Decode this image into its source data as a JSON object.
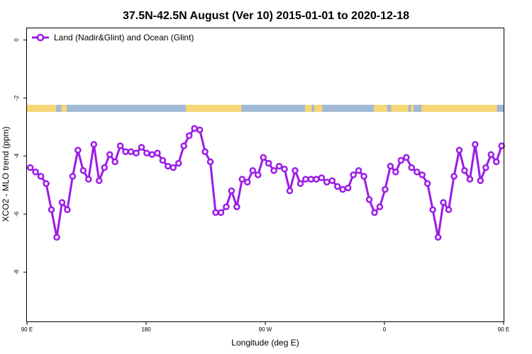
{
  "chart_data": {
    "type": "line",
    "title": "37.5N-42.5N August (Ver 10)   2015-01-01 to 2020-12-18",
    "xlabel": "Longitude (deg E)",
    "ylabel": "XCO2 - MLO trend (ppm)",
    "xlim": [
      90,
      450
    ],
    "ylim": [
      -9.7,
      0.4
    ],
    "xticks": [
      {
        "value": 90,
        "label": "90 E"
      },
      {
        "value": 180,
        "label": "180"
      },
      {
        "value": 270,
        "label": "90 W"
      },
      {
        "value": 360,
        "label": "0"
      },
      {
        "value": 450,
        "label": "90 E"
      },
      {
        "value": 540,
        "label": "180"
      }
    ],
    "yticks": [
      {
        "value": 0,
        "label": "0"
      },
      {
        "value": -2,
        "label": "-2"
      },
      {
        "value": -4,
        "label": "-4"
      },
      {
        "value": -6,
        "label": "-6"
      },
      {
        "value": -8,
        "label": "-8"
      }
    ],
    "legend": {
      "position": "top-left"
    },
    "grid": false,
    "land_strip": {
      "land_color": "#f6d675",
      "ocean_color": "#a1b8d6",
      "land_ranges_deg_e": [
        [
          90,
          112
        ],
        [
          116,
          120
        ],
        [
          210,
          252
        ],
        [
          300,
          305
        ],
        [
          307,
          313
        ],
        [
          352,
          362
        ],
        [
          365,
          378
        ],
        [
          380,
          382
        ],
        [
          388,
          400
        ],
        [
          400,
          445
        ],
        [
          450,
          472
        ],
        [
          476,
          480
        ]
      ]
    },
    "series": [
      {
        "name": "Land (Nadir&Glint) and Ocean (Glint)",
        "color": "#9b1be8",
        "x": [
          92.5,
          96.5,
          100.5,
          104.5,
          108.5,
          112.5,
          116.5,
          120.5,
          124.5,
          128.5,
          132.5,
          136.5,
          140.5,
          144.5,
          148.5,
          152.5,
          156.5,
          160.5,
          164.5,
          168.5,
          172.5,
          176.5,
          180.5,
          184.5,
          188.5,
          192.5,
          196.5,
          200.5,
          204.5,
          208.5,
          212.5,
          216.5,
          220.5,
          224.5,
          228.5,
          232.5,
          236.5,
          240.5,
          244.5,
          248.5,
          252.5,
          256.5,
          260.5,
          264.5,
          268.5,
          272.5,
          276.5,
          280.5,
          284.5,
          288.5,
          292.5,
          296.5,
          300.5,
          304.5,
          308.5,
          312.5,
          316.5,
          320.5,
          324.5,
          328.5,
          332.5,
          336.5,
          340.5,
          344.5,
          348.5,
          352.5,
          356.5,
          360.5,
          364.5,
          368.5,
          372.5,
          376.5,
          380.5,
          384.5,
          388.5,
          392.5,
          396.5,
          400.5,
          404.5,
          408.5,
          412.5,
          416.5,
          420.5,
          424.5,
          428.5,
          432.5,
          436.5,
          440.5,
          444.5,
          448.5
        ],
        "y": [
          -4.4,
          -4.55,
          -4.7,
          -4.95,
          -5.85,
          -6.8,
          -5.6,
          -5.85,
          -4.7,
          -3.8,
          -4.5,
          -4.8,
          -3.6,
          -4.85,
          -4.4,
          -3.95,
          -4.2,
          -3.65,
          -3.85,
          -3.85,
          -3.9,
          -3.7,
          -3.9,
          -3.95,
          -3.9,
          -4.15,
          -4.35,
          -4.4,
          -4.25,
          -3.65,
          -3.3,
          -3.05,
          -3.1,
          -3.85,
          -4.2,
          -5.95,
          -5.95,
          -5.75,
          -5.2,
          -5.75,
          -4.8,
          -4.9,
          -4.5,
          -4.65,
          -4.05,
          -4.25,
          -4.5,
          -4.35,
          -4.45,
          -5.2,
          -4.5,
          -4.95,
          -4.8,
          -4.8,
          -4.8,
          -4.75,
          -4.9,
          -4.85,
          -5.05,
          -5.15,
          -5.1,
          -4.65,
          -4.5,
          -4.7,
          -5.5,
          -5.95,
          -5.75,
          -5.15,
          -4.35,
          -4.55,
          -4.15,
          -4.05,
          -4.4,
          -4.55,
          -4.65,
          -4.95,
          -5.85,
          -6.8,
          -5.6,
          -5.85,
          -4.7,
          -3.8,
          -4.5,
          -4.8,
          -3.6,
          -4.85,
          -4.4,
          -3.95,
          -4.2,
          -3.65
        ]
      }
    ]
  }
}
